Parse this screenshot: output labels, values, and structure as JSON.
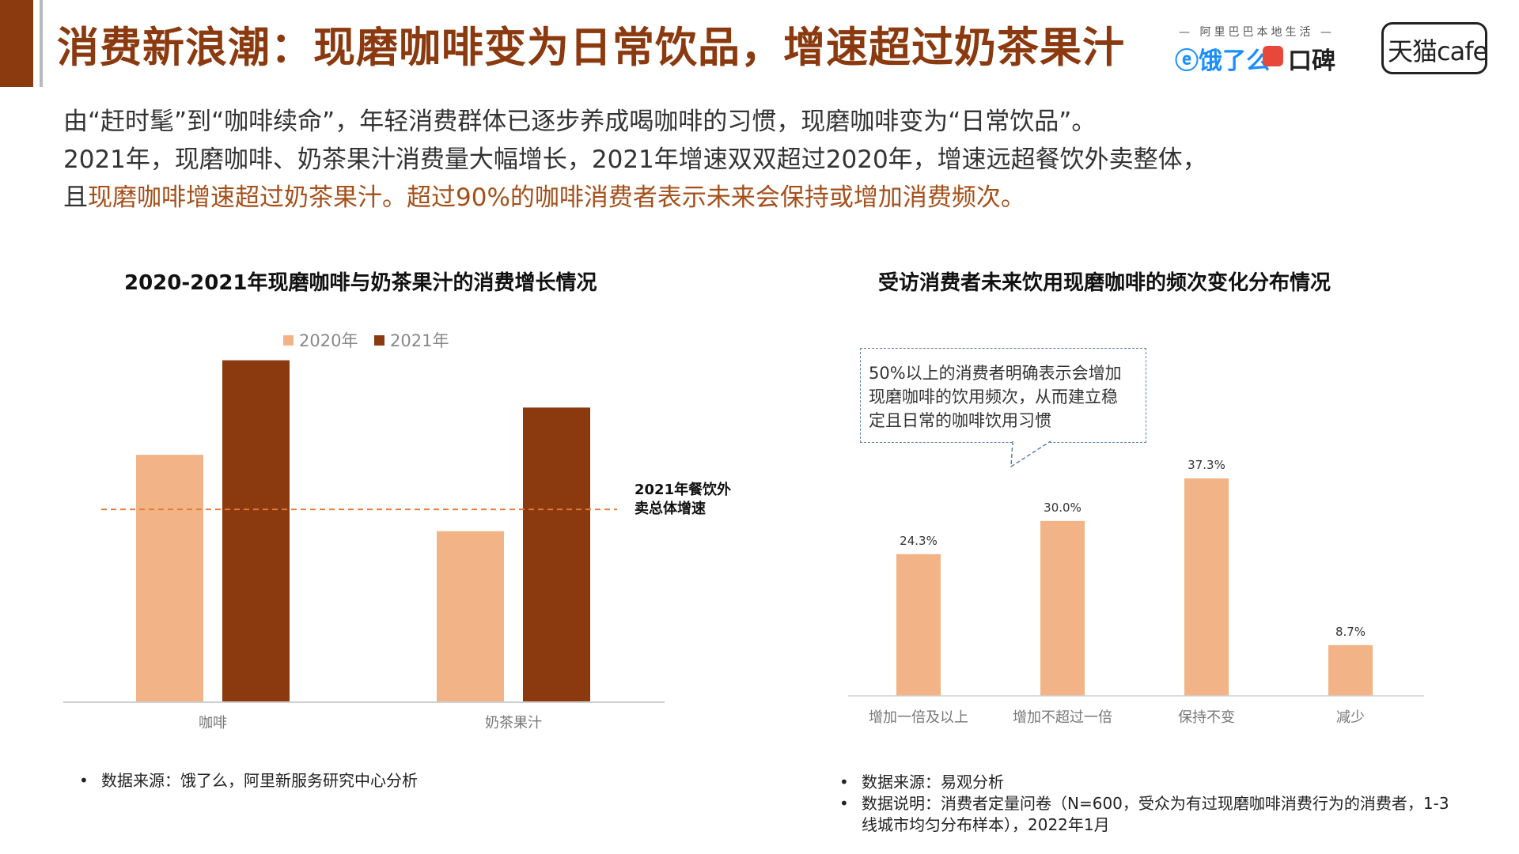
{
  "header": {
    "title": "消费新浪潮：现磨咖啡变为日常饮品，增速超过奶茶果汁",
    "logos": {
      "ali_local_life": "— 阿里巴巴本地生活 —",
      "eleme": "饿了么",
      "koubei": "口碑",
      "tmall_cafe": "天猫cafe"
    }
  },
  "intro": {
    "line1": "由“赶时髦”到“咖啡续命”，年轻消费群体已逐步养成喝咖啡的习惯，现磨咖啡变为“日常饮品”。",
    "line2": "2021年，现磨咖啡、奶茶果汁消费量大幅增长，2021年增速双双超过2020年，增速远超餐饮外卖整体，",
    "line3_prefix": "且",
    "line3_highlight": "现磨咖啡增速超过奶茶果汁。超过90%的咖啡消费者表示未来会保持或增加消费频次。"
  },
  "colors": {
    "brand": "#8B3A0F",
    "bar_2020": "#F2B486",
    "bar_2021": "#8B3A0F",
    "highlight_text": "#A5501A",
    "reference_line": "#E07B39",
    "freq_bar": "#F2B486"
  },
  "chart_data": [
    {
      "type": "bar",
      "title": "2020-2021年现磨咖啡与奶茶果汁的消费增长情况",
      "categories": [
        "咖啡",
        "奶茶果汁"
      ],
      "series": [
        {
          "name": "2020年",
          "values": [
            0.68,
            0.47
          ]
        },
        {
          "name": "2021年",
          "values": [
            0.94,
            0.81
          ]
        }
      ],
      "reference_line": {
        "value": 0.53,
        "label_line1": "2021年餐饮外",
        "label_line2": "卖总体增速"
      },
      "ylim": [
        0,
        1
      ],
      "value_note": "relative heights; no y-axis printed",
      "legend": "top-center",
      "grid": false
    },
    {
      "type": "bar",
      "title": "受访消费者未来饮用现磨咖啡的频次变化分布情况",
      "categories": [
        "增加一倍及以上",
        "增加不超过一倍",
        "保持不变",
        "减少"
      ],
      "values": [
        24.3,
        30.0,
        37.3,
        8.7
      ],
      "value_labels": [
        "24.3%",
        "30.0%",
        "37.3%",
        "8.7%"
      ],
      "ylim": [
        0,
        40
      ],
      "grid": false,
      "annotation": {
        "line1": "50%以上的消费者明确表示会增加",
        "line2": "现磨咖啡的饮用频次，从而建立稳",
        "line3": "定且日常的咖啡饮用习惯"
      }
    }
  ],
  "sources": {
    "left": "数据来源：饿了么，阿里新服务研究中心分析",
    "right_1": "数据来源：易观分析",
    "right_2": "数据说明：消费者定量问卷（N=600，受众为有过现磨咖啡消费行为的消费者，1-3",
    "right_3": "线城市均匀分布样本），2022年1月"
  }
}
